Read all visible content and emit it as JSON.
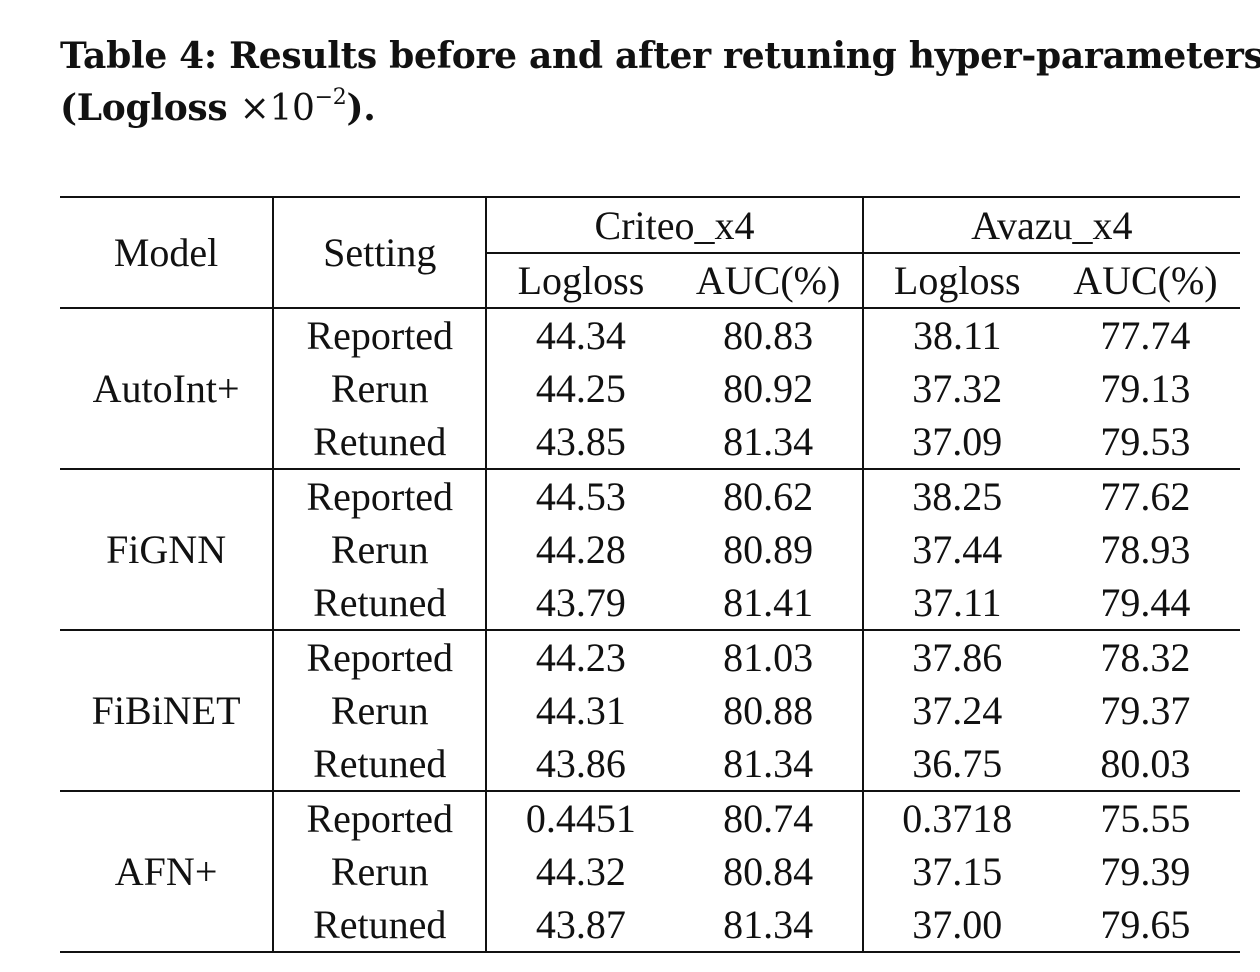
{
  "caption": {
    "line1": "Table 4: Results before and after retuning hyper-parameters",
    "line2_prefix": "(Logloss ",
    "times": "×10",
    "exponent": "−2",
    "line2_suffix": ")."
  },
  "header": {
    "model": "Model",
    "setting": "Setting",
    "datasets": [
      "Criteo_x4",
      "Avazu_x4"
    ],
    "metrics": [
      "Logloss",
      "AUC(%)",
      "Logloss",
      "AUC(%)"
    ]
  },
  "groups": [
    {
      "model": "AutoInt+",
      "rows": [
        {
          "setting": "Reported",
          "values": [
            "44.34",
            "80.83",
            "38.11",
            "77.74"
          ],
          "bold": false
        },
        {
          "setting": "Rerun",
          "values": [
            "44.25",
            "80.92",
            "37.32",
            "79.13"
          ],
          "bold": false
        },
        {
          "setting": "Retuned",
          "values": [
            "43.85",
            "81.34",
            "37.09",
            "79.53"
          ],
          "bold": true
        }
      ]
    },
    {
      "model": "FiGNN",
      "rows": [
        {
          "setting": "Reported",
          "values": [
            "44.53",
            "80.62",
            "38.25",
            "77.62"
          ],
          "bold": false
        },
        {
          "setting": "Rerun",
          "values": [
            "44.28",
            "80.89",
            "37.44",
            "78.93"
          ],
          "bold": false
        },
        {
          "setting": "Retuned",
          "values": [
            "43.79",
            "81.41",
            "37.11",
            "79.44"
          ],
          "bold": true
        }
      ]
    },
    {
      "model": "FiBiNET",
      "rows": [
        {
          "setting": "Reported",
          "values": [
            "44.23",
            "81.03",
            "37.86",
            "78.32"
          ],
          "bold": false
        },
        {
          "setting": "Rerun",
          "values": [
            "44.31",
            "80.88",
            "37.24",
            "79.37"
          ],
          "bold": false
        },
        {
          "setting": "Retuned",
          "values": [
            "43.86",
            "81.34",
            "36.75",
            "80.03"
          ],
          "bold": true
        }
      ]
    },
    {
      "model": "AFN+",
      "rows": [
        {
          "setting": "Reported",
          "values": [
            "0.4451",
            "80.74",
            "0.3718",
            "75.55"
          ],
          "bold": false
        },
        {
          "setting": "Rerun",
          "values": [
            "44.32",
            "80.84",
            "37.15",
            "79.39"
          ],
          "bold": false
        },
        {
          "setting": "Retuned",
          "values": [
            "43.87",
            "81.34",
            "37.00",
            "79.65"
          ],
          "bold": true
        }
      ]
    }
  ]
}
